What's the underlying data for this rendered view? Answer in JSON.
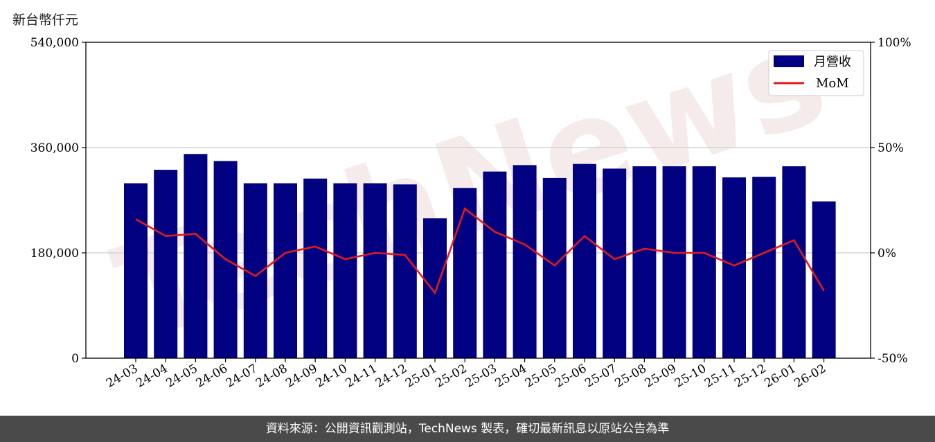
{
  "unit_label": "新台幣仟元",
  "footer_text": "資料來源：公開資訊觀測站，TechNews 製表，確切最新訊息以原站公告為準",
  "watermark_text": "TechNews",
  "colors": {
    "bar": "#000080",
    "line": "#e31a1c",
    "footer_bg": "#4a4a4a"
  },
  "chart_data": {
    "type": "bar",
    "categories": [
      "24-03",
      "24-04",
      "24-05",
      "24-06",
      "24-07",
      "24-08",
      "24-09",
      "24-10",
      "24-11",
      "24-12",
      "25-01",
      "25-02",
      "25-03",
      "25-04",
      "25-05",
      "25-06",
      "25-07",
      "25-08",
      "25-09",
      "25-10",
      "25-11",
      "25-12",
      "26-01",
      "26-02"
    ],
    "series": [
      {
        "name": "月營收",
        "axis": "left",
        "kind": "bar",
        "values": [
          299000,
          322000,
          349000,
          337000,
          299000,
          299000,
          307000,
          299000,
          299000,
          297000,
          239000,
          291000,
          319000,
          330000,
          308000,
          332000,
          324000,
          328000,
          328000,
          328000,
          309000,
          310000,
          328000,
          268000
        ]
      },
      {
        "name": "MoM",
        "axis": "right",
        "kind": "line",
        "unit": "%",
        "values": [
          16,
          8,
          9,
          -3,
          -11,
          0,
          3,
          -3,
          0,
          -1,
          -19,
          21,
          10,
          4,
          -6,
          8,
          -3,
          2,
          0,
          0,
          -6,
          0,
          6,
          -18
        ]
      }
    ],
    "y_left": {
      "min": 0,
      "max": 540000,
      "ticks": [
        0,
        180000,
        360000,
        540000
      ],
      "tick_labels": [
        "0",
        "180,000",
        "360,000",
        "540,000"
      ]
    },
    "y_right": {
      "min": -50,
      "max": 100,
      "ticks": [
        -50,
        0,
        50,
        100
      ],
      "tick_labels": [
        "-50%",
        "0%",
        "50%",
        "100%"
      ]
    },
    "grid": "horizontal",
    "legend": "top-right"
  }
}
